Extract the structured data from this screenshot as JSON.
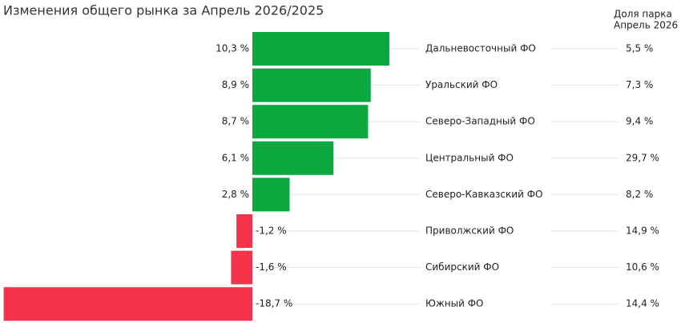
{
  "chart_data": {
    "type": "bar",
    "title": "Изменения общего рынка за Апрель 2026/2025",
    "categories": [
      "Дальневосточный ФО",
      "Уральский ФО",
      "Северо-Западный ФО",
      "Центральный ФО",
      "Северо-Кавказский ФО",
      "Приволжский ФО",
      "Сибирский ФО",
      "Южный ФО"
    ],
    "values": [
      10.3,
      8.9,
      8.7,
      6.1,
      2.8,
      -1.2,
      -1.6,
      -18.7
    ],
    "value_labels": [
      "10,3 %",
      "8,9 %",
      "8,7 %",
      "6,1 %",
      "2,8 %",
      "-1,2 %",
      "-1,6 %",
      "-18,7 %"
    ],
    "positive_color": "#0aa83f",
    "negative_color": "#f5334a",
    "share_title": [
      "Доля парка",
      "Апрель 2026"
    ],
    "share_values": [
      5.5,
      7.3,
      9.4,
      29.7,
      8.2,
      14.9,
      10.6,
      14.4
    ],
    "share_labels": [
      "5,5 %",
      "7,3 %",
      "9,4 %",
      "29,7 %",
      "8,2 %",
      "14,9 %",
      "10,6 %",
      "14,4 %"
    ]
  }
}
